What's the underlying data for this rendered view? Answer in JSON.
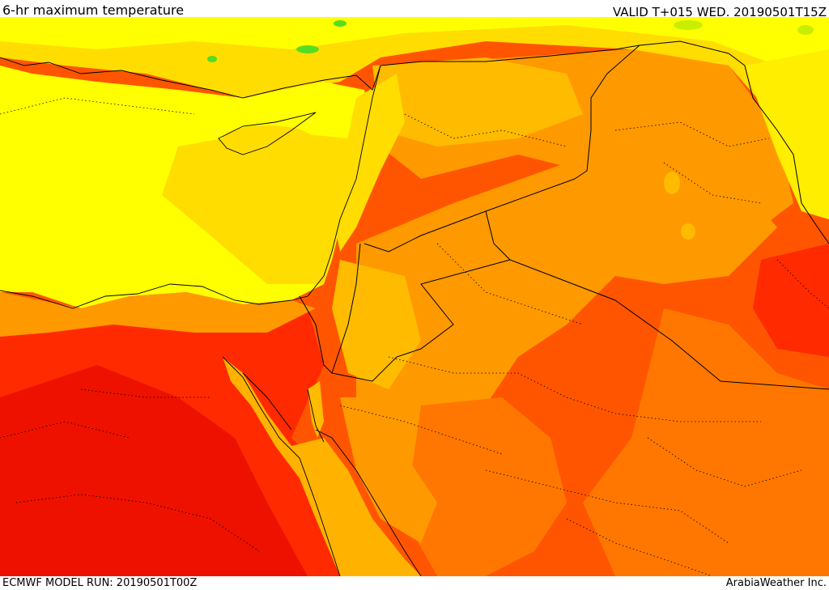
{
  "header": {
    "title": "6-hr maximum temperature",
    "valid_time": "VALID T+015 WED. 20190501T15Z"
  },
  "footer": {
    "model_run": "ECMWF MODEL RUN: 20190501T00Z",
    "credit": "ArabiaWeather Inc."
  },
  "palette": {
    "green": "#55dd22",
    "lime": "#c8ee00",
    "yellow": "#ffff00",
    "gold": "#ffdd00",
    "amber": "#ffbb00",
    "orange": "#ff9900",
    "dark_orange": "#ff7700",
    "red_orange": "#ff5500",
    "red": "#ff2a00",
    "deep_red": "#ee1100",
    "sea_yellow": "#ffee00",
    "sea_amber": "#ffb300"
  }
}
